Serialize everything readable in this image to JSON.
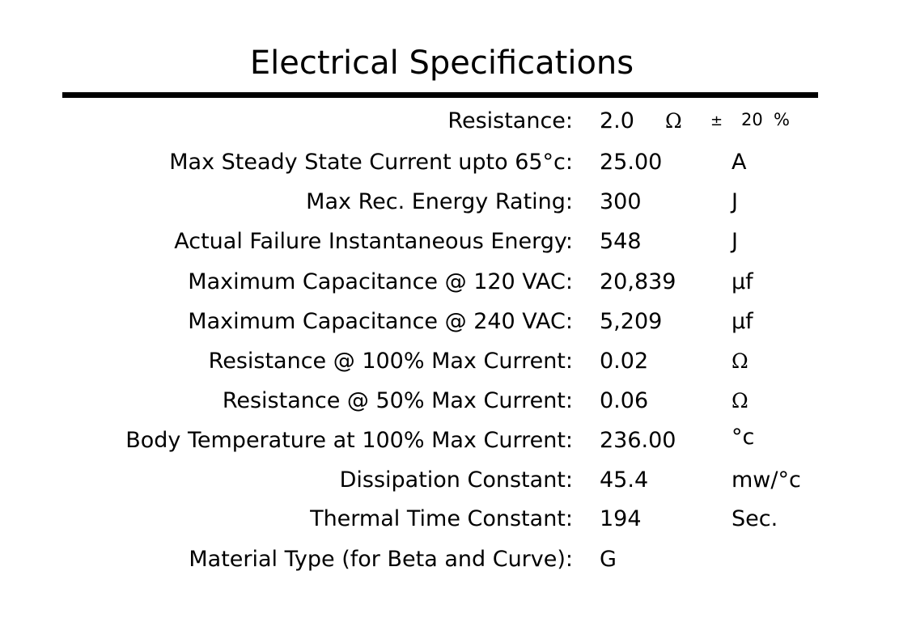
{
  "title": "Electrical Specifications",
  "resistance": {
    "label": "Resistance:",
    "value": "2.0",
    "unit": "Ω",
    "tolerance_sign": "±",
    "tolerance_value": "20",
    "tolerance_unit": "%"
  },
  "rows": [
    {
      "label": "Max Steady State Current upto 65°c:",
      "value": "25.00",
      "unit": "A"
    },
    {
      "label": "Max Rec. Energy Rating:",
      "value": "300",
      "unit": "J"
    },
    {
      "label": "Actual Failure Instantaneous Energy:",
      "value": "548",
      "unit": "J"
    },
    {
      "label": "Maximum Capacitance @ 120 VAC:",
      "value": "20,839",
      "unit": "μf"
    },
    {
      "label": "Maximum Capacitance @ 240 VAC:",
      "value": "5,209",
      "unit": "μf"
    },
    {
      "label": "Resistance @ 100% Max Current:",
      "value": "0.02",
      "unit": "Ω"
    },
    {
      "label": "Resistance @ 50% Max Current:",
      "value": "0.06",
      "unit": "Ω"
    },
    {
      "label": "Body Temperature at 100% Max Current:",
      "value": "236.00",
      "unit": "°c"
    },
    {
      "label": "Dissipation Constant:",
      "value": "45.4",
      "unit": "mw/°c"
    },
    {
      "label": "Thermal Time Constant:",
      "value": "194",
      "unit": "Sec."
    },
    {
      "label": "Material Type (for Beta and Curve):",
      "value": "G",
      "unit": ""
    }
  ]
}
